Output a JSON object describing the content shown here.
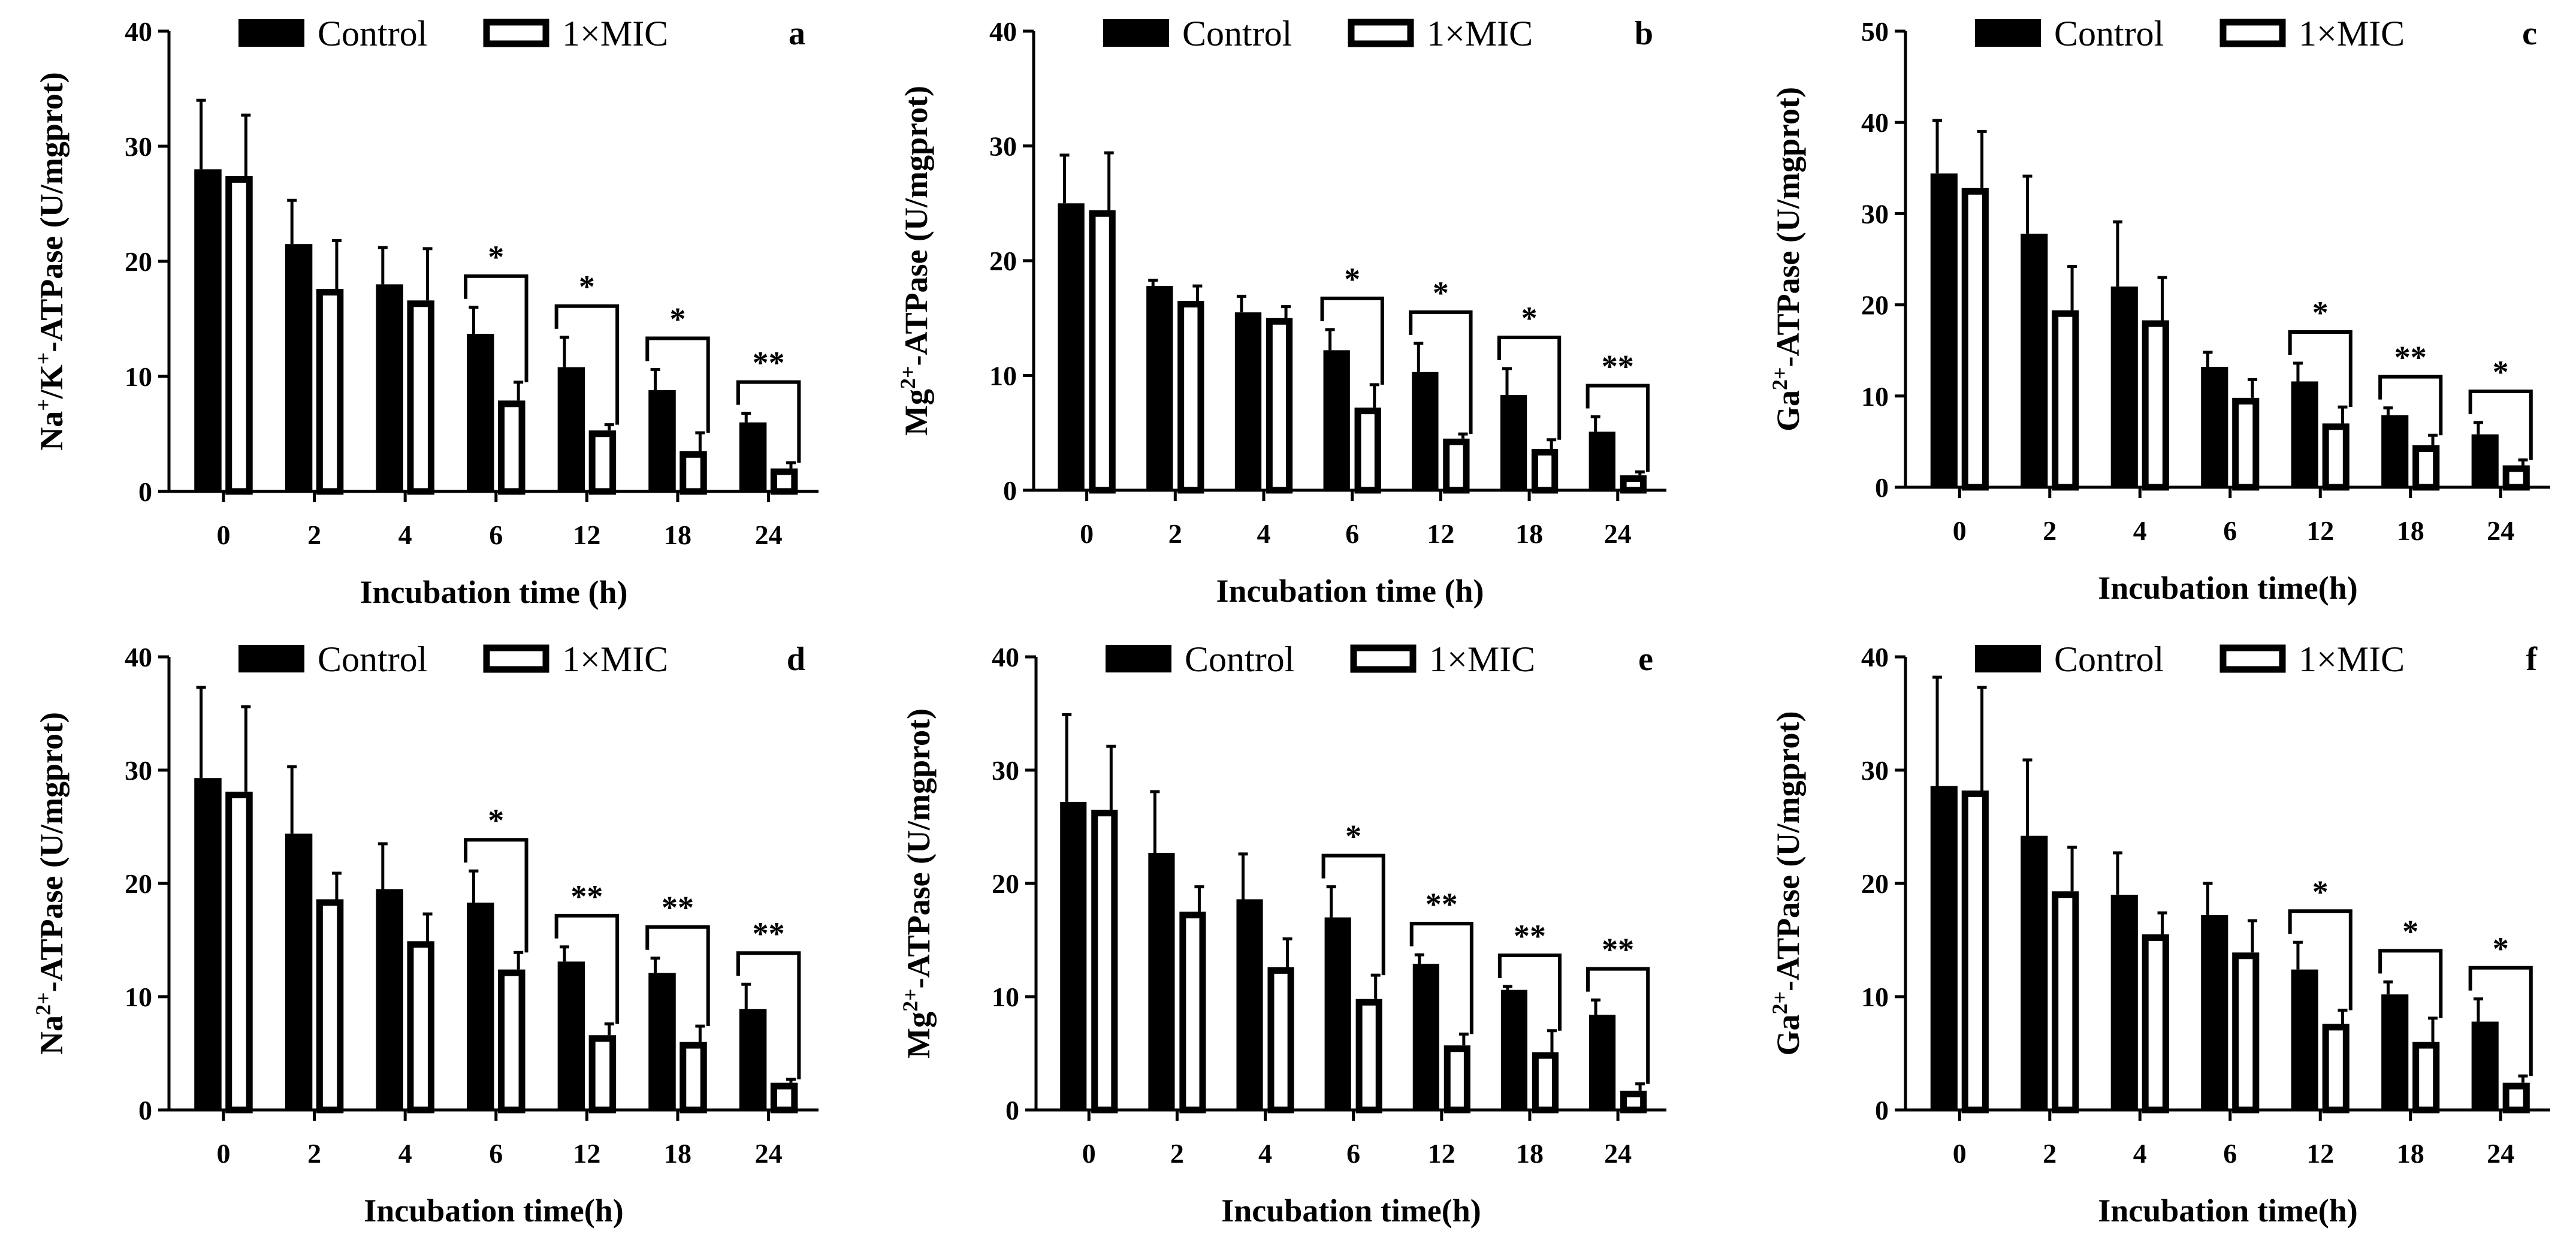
{
  "colors": {
    "control": "#000000",
    "mic": "#ffffff",
    "axis": "#000000"
  },
  "chart_data": [
    {
      "type": "bar",
      "panel_letter": "a",
      "ylabel_parts": [
        {
          "t": "Na"
        },
        {
          "t": "+",
          "sup": true
        },
        {
          "t": "/K"
        },
        {
          "t": "+",
          "sup": true
        },
        {
          "t": "-ATPase (U/mgprot)"
        }
      ],
      "xlabel": "Incubation time (h)",
      "ylim": [
        0,
        40
      ],
      "yticks": [
        "0",
        "10",
        "20",
        "30",
        "40"
      ],
      "categories": [
        "0",
        "2",
        "4",
        "6",
        "12",
        "18",
        "24"
      ],
      "series": [
        {
          "name": "Control",
          "values": [
            28,
            21.5,
            18,
            13.7,
            10.8,
            8.8,
            6
          ],
          "errors": [
            6,
            3.8,
            3.2,
            2.3,
            2.6,
            1.8,
            0.8
          ]
        },
        {
          "name": "1×MIC",
          "values": [
            27.4,
            17.6,
            16.6,
            7.9,
            5.3,
            3.5,
            2
          ],
          "errors": [
            5.3,
            4.2,
            4.5,
            1.6,
            0.5,
            1.6,
            0.5
          ]
        }
      ],
      "significance": [
        "",
        "",
        "",
        "*",
        "*",
        "*",
        "**"
      ]
    },
    {
      "type": "bar",
      "panel_letter": "b",
      "ylabel_parts": [
        {
          "t": "Mg"
        },
        {
          "t": "2+",
          "sup": true
        },
        {
          "t": "-ATPase (U/mgprot)"
        }
      ],
      "xlabel": "Incubation time (h)",
      "ylim": [
        0,
        40
      ],
      "yticks": [
        "0",
        "10",
        "20",
        "30",
        "40"
      ],
      "categories": [
        "0",
        "2",
        "4",
        "6",
        "12",
        "18",
        "24"
      ],
      "series": [
        {
          "name": "Control",
          "values": [
            25,
            17.8,
            15.5,
            12.2,
            10.3,
            8.3,
            5.1
          ],
          "errors": [
            4.2,
            0.5,
            1.4,
            1.8,
            2.5,
            2.3,
            1.3
          ]
        },
        {
          "name": "1×MIC",
          "values": [
            24.4,
            16.5,
            15,
            7.2,
            4.5,
            3.6,
            1.3
          ],
          "errors": [
            5,
            1.3,
            1,
            2,
            0.4,
            0.8,
            0.3
          ]
        }
      ],
      "significance": [
        "",
        "",
        "",
        "*",
        "*",
        "*",
        "**"
      ]
    },
    {
      "type": "bar",
      "panel_letter": "c",
      "ylabel_parts": [
        {
          "t": "Ga"
        },
        {
          "t": "2+",
          "sup": true
        },
        {
          "t": "-ATPase (U/mgprot)"
        }
      ],
      "xlabel": "Incubation time(h)",
      "ylim": [
        0,
        50
      ],
      "yticks": [
        "0",
        "10",
        "20",
        "30",
        "40",
        "50"
      ],
      "categories": [
        "0",
        "2",
        "4",
        "6",
        "12",
        "18",
        "24"
      ],
      "series": [
        {
          "name": "Control",
          "values": [
            34.4,
            27.8,
            22,
            13.2,
            11.6,
            7.9,
            5.8
          ],
          "errors": [
            5.8,
            6.3,
            7.1,
            1.6,
            2,
            0.8,
            1.3
          ]
        },
        {
          "name": "1×MIC",
          "values": [
            32.8,
            19.4,
            18.3,
            9.8,
            7,
            4.6,
            2.4
          ],
          "errors": [
            6.2,
            4.8,
            4.7,
            2,
            1.8,
            1.1,
            0.6
          ]
        }
      ],
      "significance": [
        "",
        "",
        "",
        "",
        "*",
        "**",
        "*"
      ]
    },
    {
      "type": "bar",
      "panel_letter": "d",
      "ylabel_parts": [
        {
          "t": "Na"
        },
        {
          "t": "2+",
          "sup": true
        },
        {
          "t": "-ATPase (U/mgprot)"
        }
      ],
      "xlabel": "Incubation time(h)",
      "ylim": [
        0,
        40
      ],
      "yticks": [
        "0",
        "10",
        "20",
        "30",
        "40"
      ],
      "categories": [
        "0",
        "2",
        "4",
        "6",
        "12",
        "18",
        "24"
      ],
      "series": [
        {
          "name": "Control",
          "values": [
            29.3,
            24.4,
            19.5,
            18.3,
            13.1,
            12.1,
            8.9
          ],
          "errors": [
            8,
            5.9,
            4,
            2.8,
            1.3,
            1.3,
            2.2
          ]
        },
        {
          "name": "1×MIC",
          "values": [
            28.1,
            18.6,
            14.9,
            12.4,
            6.6,
            6,
            2.4
          ],
          "errors": [
            7.5,
            2.3,
            2.4,
            1.5,
            1,
            1.4,
            0.3
          ]
        }
      ],
      "significance": [
        "",
        "",
        "",
        "*",
        "**",
        "**",
        "**"
      ]
    },
    {
      "type": "bar",
      "panel_letter": "e",
      "ylabel_parts": [
        {
          "t": "Mg"
        },
        {
          "t": "2+",
          "sup": true
        },
        {
          "t": "-ATPase (U/mgprot)"
        }
      ],
      "xlabel": "Incubation time(h)",
      "ylim": [
        0,
        40
      ],
      "yticks": [
        "0",
        "10",
        "20",
        "30",
        "40"
      ],
      "categories": [
        "0",
        "2",
        "4",
        "6",
        "12",
        "18",
        "24"
      ],
      "series": [
        {
          "name": "Control",
          "values": [
            27.2,
            22.7,
            18.6,
            17,
            12.9,
            10.6,
            8.4
          ],
          "errors": [
            7.7,
            5.4,
            4,
            2.7,
            0.8,
            0.3,
            1.3
          ]
        },
        {
          "name": "1×MIC",
          "values": [
            26.5,
            17.5,
            12.6,
            9.8,
            5.7,
            5.1,
            1.7
          ],
          "errors": [
            5.6,
            2.2,
            2.5,
            2.1,
            1,
            1.9,
            0.6
          ]
        }
      ],
      "significance": [
        "",
        "",
        "",
        "*",
        "**",
        "**",
        "**"
      ]
    },
    {
      "type": "bar",
      "panel_letter": "f",
      "ylabel_parts": [
        {
          "t": "Ga"
        },
        {
          "t": "2+",
          "sup": true
        },
        {
          "t": "-ATPase (U/mgprot)"
        }
      ],
      "xlabel": "Incubation time(h)",
      "ylim": [
        0,
        40
      ],
      "yticks": [
        "0",
        "10",
        "20",
        "30",
        "40"
      ],
      "categories": [
        "0",
        "2",
        "4",
        "6",
        "12",
        "18",
        "24"
      ],
      "series": [
        {
          "name": "Control",
          "values": [
            28.6,
            24.2,
            19,
            17.2,
            12.4,
            10.2,
            7.8
          ],
          "errors": [
            9.6,
            6.7,
            3.7,
            2.8,
            2.4,
            1.1,
            2
          ]
        },
        {
          "name": "1×MIC",
          "values": [
            28.2,
            19.3,
            15.5,
            13.9,
            7.6,
            6,
            2.4
          ],
          "errors": [
            9.1,
            3.9,
            1.9,
            2.8,
            1.2,
            2.1,
            0.6
          ]
        }
      ],
      "significance": [
        "",
        "",
        "",
        "",
        "*",
        "*",
        "*"
      ]
    }
  ]
}
